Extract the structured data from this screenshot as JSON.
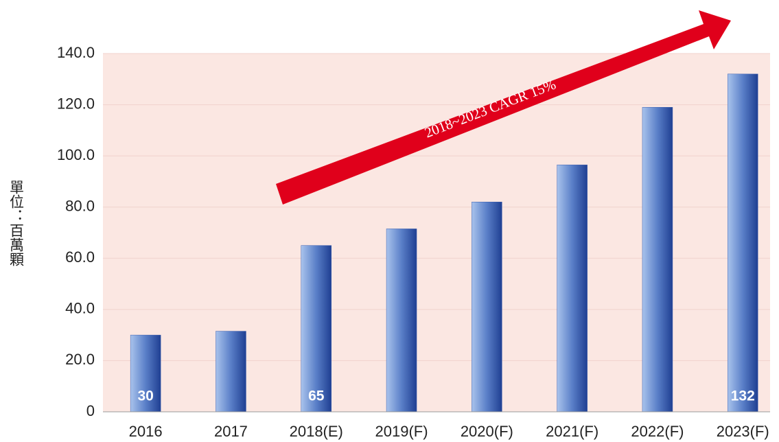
{
  "chart_data": {
    "type": "bar",
    "categories": [
      "2016",
      "2017",
      "2018(E)",
      "2019(F)",
      "2020(F)",
      "2021(F)",
      "2022(F)",
      "2023(F)"
    ],
    "values": [
      30,
      31.5,
      65,
      71.5,
      82,
      96.5,
      119,
      132
    ],
    "value_labels": [
      "30",
      null,
      "65",
      null,
      null,
      null,
      null,
      "132"
    ],
    "color": "#3a5fb0",
    "ylabel": "單位：百萬顆",
    "annotation": "2018~2023 CAGR 15%",
    "ylim": [
      0,
      140
    ],
    "yticks": [
      0,
      {
        "value": 20,
        "label": "20.0"
      },
      {
        "value": 40,
        "label": "40.0"
      },
      {
        "value": 60,
        "label": "60.0"
      },
      {
        "value": 80,
        "label": "80.0"
      },
      {
        "value": 100,
        "label": "100.0"
      },
      {
        "value": 120,
        "label": "120.0"
      },
      {
        "value": 140,
        "label": "140.0"
      }
    ],
    "grid": true
  }
}
